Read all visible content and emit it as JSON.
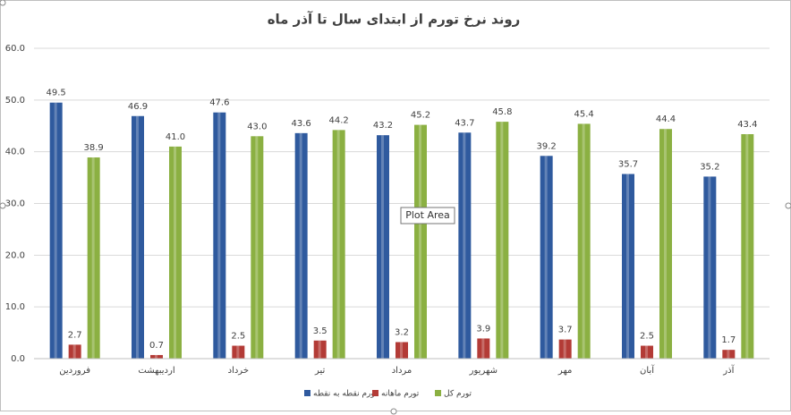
{
  "chart_data": {
    "type": "bar",
    "title": "روند نرخ تورم از ابتدای سال تا آذر ماه",
    "categories": [
      "فروردین",
      "اردیبهشت",
      "خرداد",
      "تیر",
      "مرداد",
      "شهریور",
      "مهر",
      "آبان",
      "آذر"
    ],
    "series": [
      {
        "name": "تورم نقطه به نقطه",
        "color": "#2f5a9e",
        "values": [
          49.5,
          46.9,
          47.6,
          43.6,
          43.2,
          43.7,
          39.2,
          35.7,
          35.2
        ],
        "value_labels": [
          "49.5",
          "46.9",
          "47.6",
          "43.6",
          "43.2",
          "43.7",
          "39.2",
          "35.7",
          "35.2"
        ]
      },
      {
        "name": "تورم ماهانه",
        "color": "#b33b36",
        "values": [
          2.7,
          0.7,
          2.5,
          3.5,
          3.2,
          3.9,
          3.7,
          2.5,
          1.7
        ],
        "value_labels": [
          "2.7",
          "0.7",
          "2.5",
          "3.5",
          "3.2",
          "3.9",
          "3.7",
          "2.5",
          "1.7"
        ]
      },
      {
        "name": "تورم کل",
        "color": "#8bb042",
        "values": [
          38.9,
          41.0,
          43.0,
          44.2,
          45.2,
          45.8,
          45.4,
          44.4,
          43.4
        ],
        "value_labels": [
          "38.9",
          "41.0",
          "43.0",
          "44.2",
          "45.2",
          "45.8",
          "45.4",
          "44.4",
          "43.4"
        ]
      }
    ],
    "ylim": [
      0,
      60
    ],
    "yticks": [
      {
        "value": 0,
        "label": "0.0"
      },
      {
        "value": 10,
        "label": "10.0"
      },
      {
        "value": 20,
        "label": "20.0"
      },
      {
        "value": 30,
        "label": "30.0"
      },
      {
        "value": 40,
        "label": "40.0"
      },
      {
        "value": 50,
        "label": "50.0"
      },
      {
        "value": 60,
        "label": "60.0"
      }
    ],
    "grid": true,
    "legend": "bottom",
    "tooltip": "Plot Area"
  }
}
